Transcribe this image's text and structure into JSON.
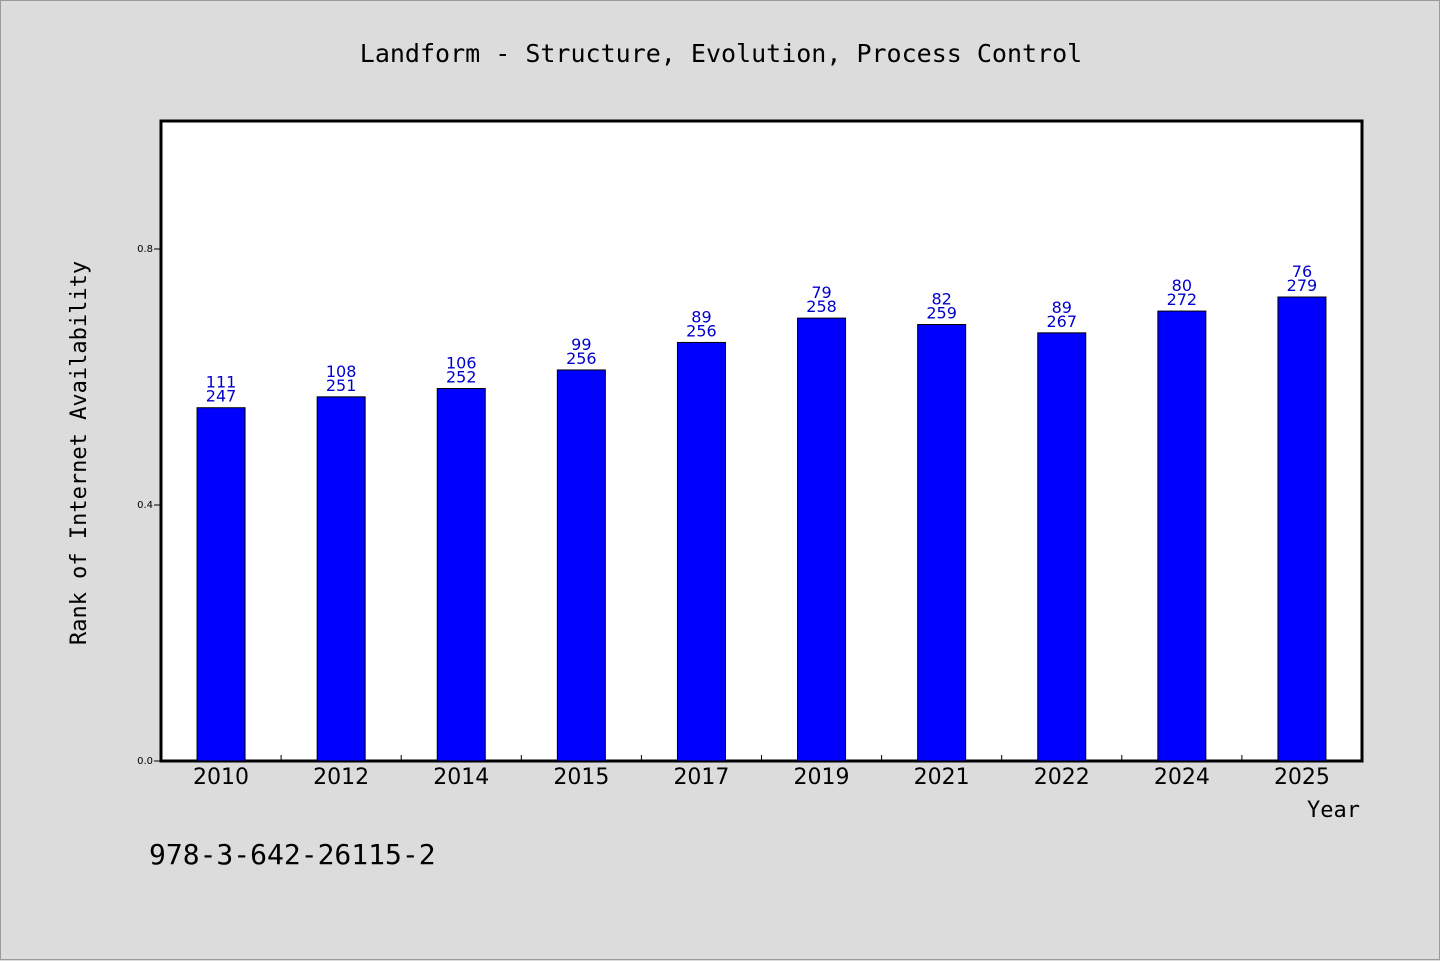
{
  "chart_data": {
    "type": "bar",
    "title": "Landform - Structure, Evolution, Process Control",
    "xlabel": "Year",
    "ylabel": "Rank of Internet Availability",
    "categories": [
      "2010",
      "2012",
      "2014",
      "2015",
      "2017",
      "2019",
      "2021",
      "2022",
      "2024",
      "2025"
    ],
    "values": [
      0.552,
      0.569,
      0.582,
      0.611,
      0.654,
      0.692,
      0.682,
      0.669,
      0.703,
      0.725
    ],
    "label_top": [
      "111",
      "108",
      "106",
      "99",
      "89",
      "79",
      "82",
      "89",
      "80",
      "76"
    ],
    "label_bottom": [
      "247",
      "251",
      "252",
      "256",
      "256",
      "258",
      "259",
      "267",
      "272",
      "279"
    ],
    "ylim": [
      0,
      1.0
    ],
    "yticks": [
      0.0,
      0.4,
      0.8
    ],
    "ytick_labels": [
      "0.0",
      "0.4",
      "0.8"
    ],
    "bar_color": "#0000ff",
    "label_color": "#0000cc",
    "background_color": "#dcdcdc",
    "plot_background": "#ffffff",
    "grid": false,
    "legend": "none"
  },
  "footer": {
    "isbn": "978-3-642-26115-2"
  }
}
